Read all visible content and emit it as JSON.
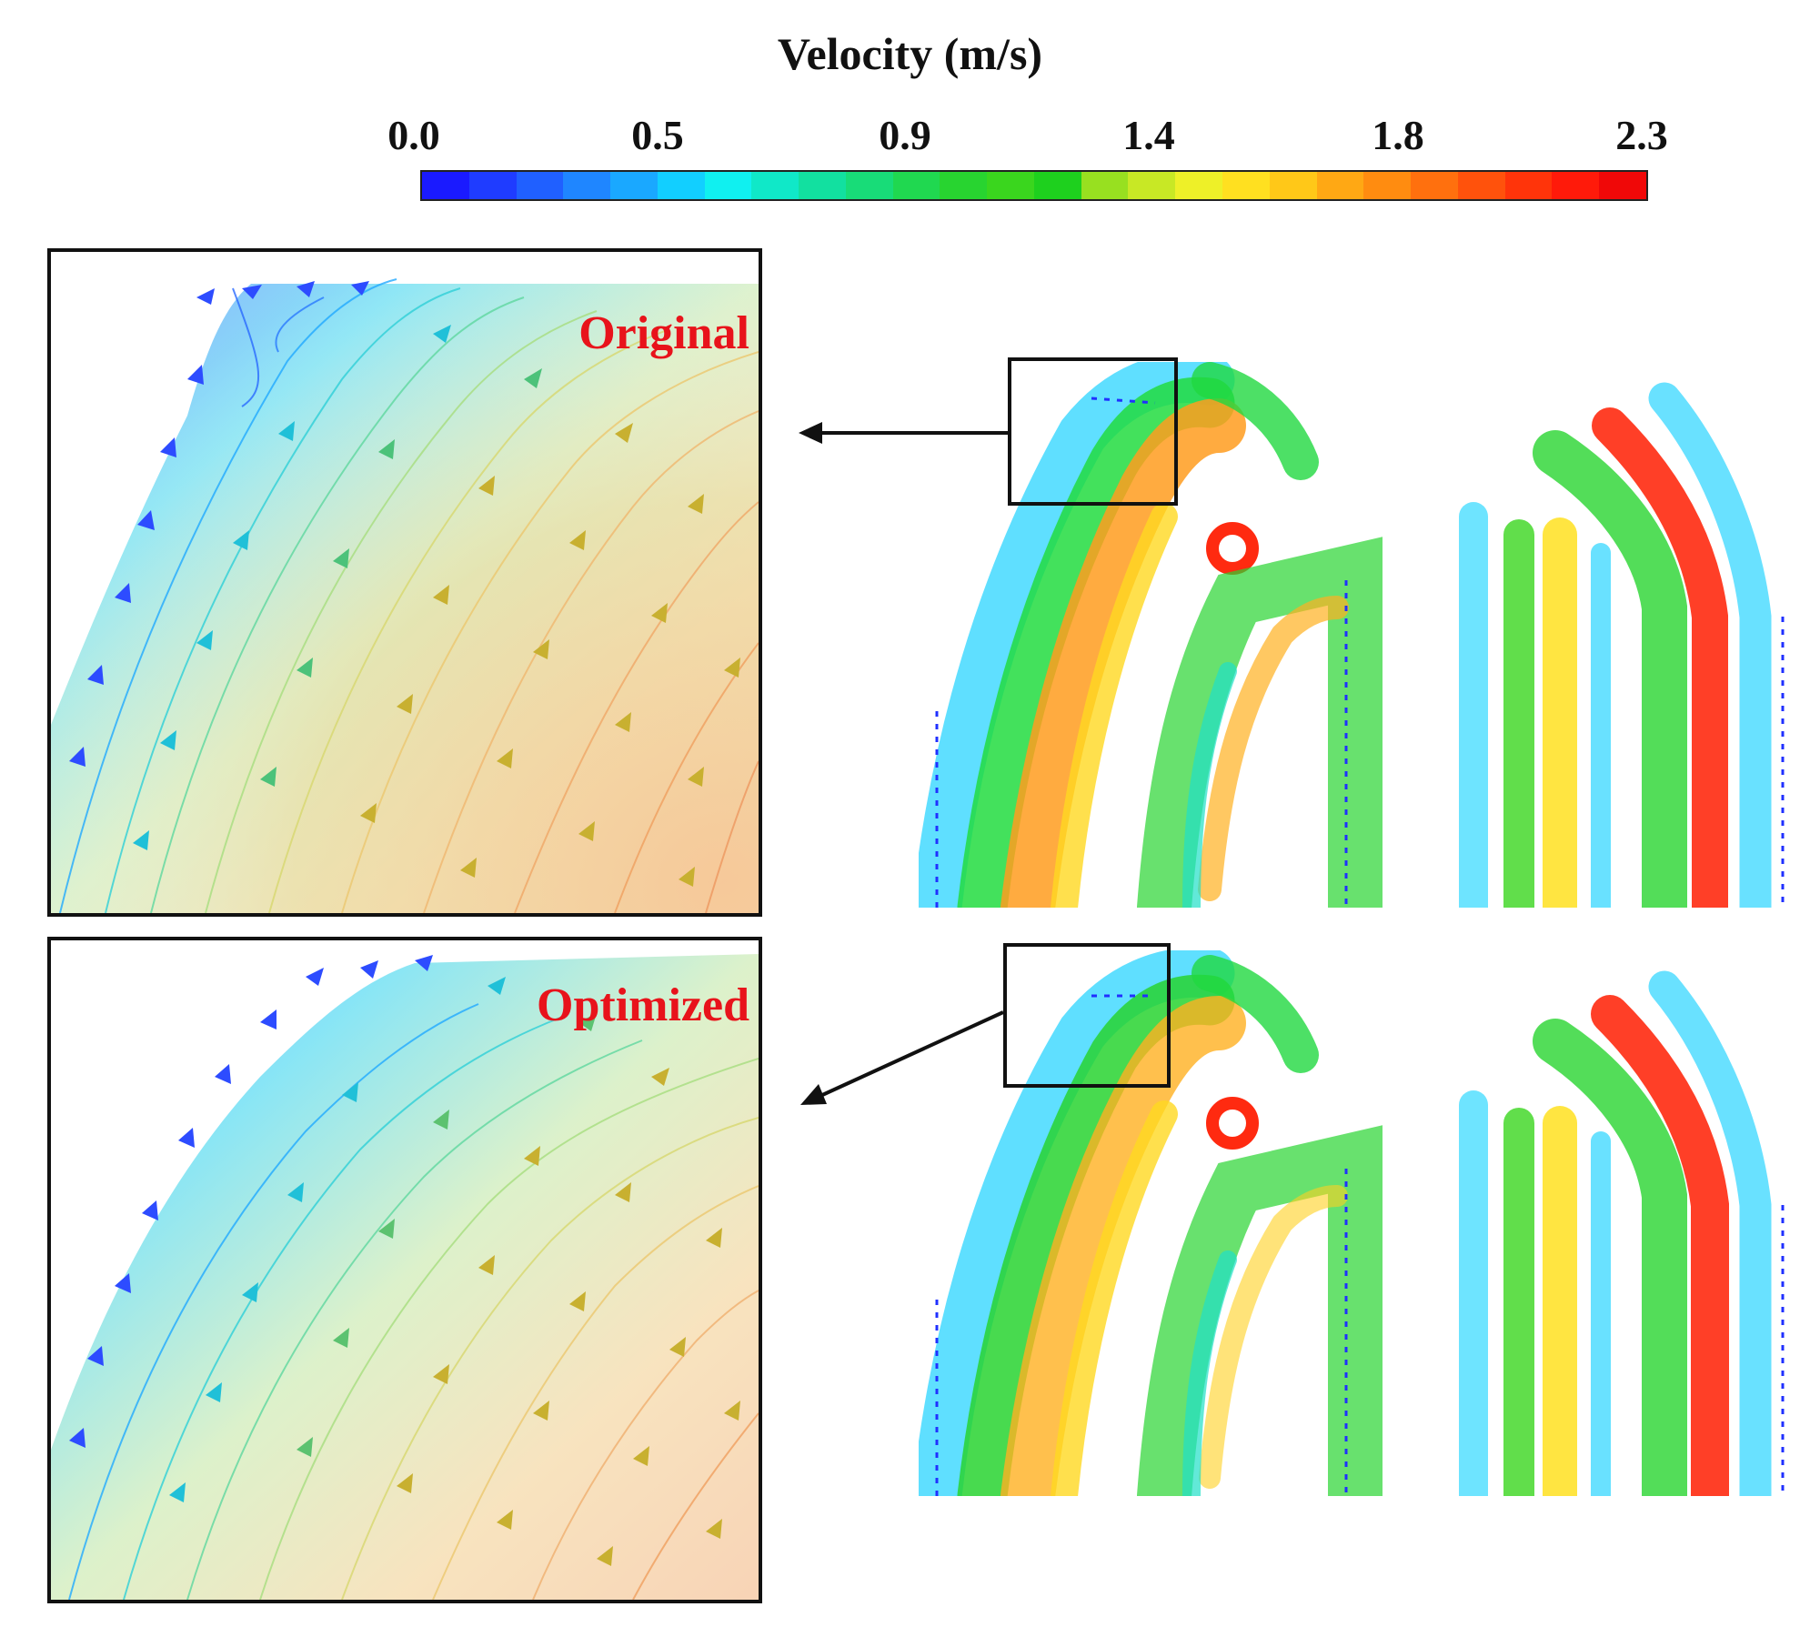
{
  "colorbar": {
    "title": "Velocity (m/s)",
    "ticks": [
      "0.0",
      "0.5",
      "0.9",
      "1.4",
      "1.8",
      "2.3"
    ],
    "colors": [
      "#1a1aff",
      "#1f3cff",
      "#2060ff",
      "#1f86ff",
      "#1aa8ff",
      "#12cfff",
      "#10f0f0",
      "#10e8c8",
      "#12e0a0",
      "#18dc78",
      "#20d850",
      "#28d430",
      "#3ad61e",
      "#1ed01e",
      "#98e020",
      "#c8e825",
      "#eef028",
      "#ffe020",
      "#ffc818",
      "#ffa814",
      "#ff8c10",
      "#ff700e",
      "#ff520c",
      "#ff340a",
      "#ff1a0a",
      "#f00808"
    ]
  },
  "panels": {
    "original": {
      "label": "Original"
    },
    "optimized": {
      "label": "Optimized"
    }
  }
}
